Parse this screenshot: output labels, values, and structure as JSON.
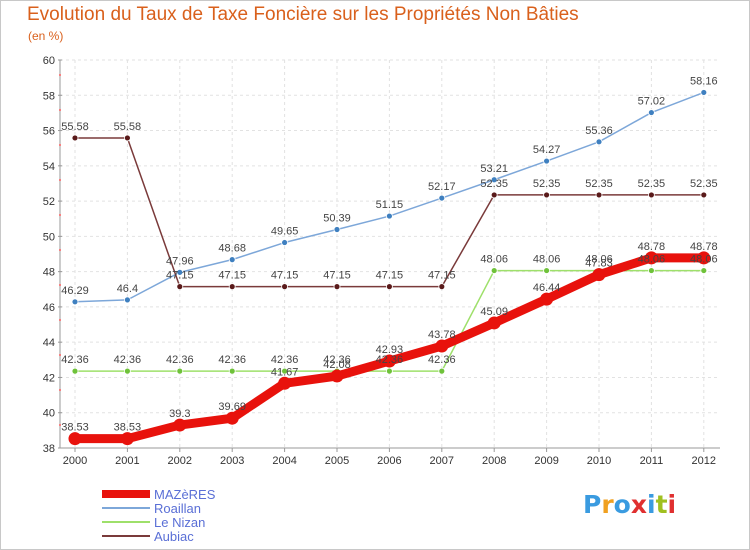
{
  "header": {
    "title": "Evolution du Taux de Taxe Foncière sur les Propriétés Non Bâties",
    "subtitle": "(en %)"
  },
  "logo": {
    "text": "Proxiti",
    "letters": [
      "P",
      "r",
      "o",
      "x",
      "i",
      "t",
      "i"
    ],
    "letter_colors": [
      "#3a9be0",
      "#f0a020",
      "#3a9be0",
      "#e03030",
      "#3a9be0",
      "#a0c020",
      "#e03030"
    ]
  },
  "chart_data": {
    "type": "line",
    "title": "Evolution du Taux de Taxe Foncière sur les Propriétés Non Bâties",
    "subtitle": "(en %)",
    "xlabel": "",
    "ylabel": "",
    "x": [
      2000,
      2001,
      2002,
      2003,
      2004,
      2005,
      2006,
      2007,
      2008,
      2009,
      2010,
      2011,
      2012
    ],
    "ylim": [
      38,
      60
    ],
    "yticks": [
      38,
      40,
      42,
      44,
      46,
      48,
      50,
      52,
      54,
      56,
      58,
      60
    ],
    "grid": true,
    "legend_position": "bottom-left",
    "series": [
      {
        "name": "MAZèRES",
        "color": "#e8120c",
        "point_color": "#e8120c",
        "emphasis": true,
        "values": [
          38.53,
          38.53,
          39.3,
          39.69,
          41.67,
          42.08,
          42.93,
          43.78,
          45.09,
          46.44,
          47.83,
          48.78,
          48.78
        ],
        "labels": [
          "38.53",
          "38.53",
          "39.3",
          "39.69",
          "41.67",
          "42.08",
          "42.93",
          "43.78",
          "45.09",
          "46.44",
          "47.83",
          "48.78",
          "48.78"
        ]
      },
      {
        "name": "Roaillan",
        "color": "#7da7d9",
        "point_color": "#3f80c0",
        "emphasis": false,
        "values": [
          46.29,
          46.4,
          47.96,
          48.68,
          49.65,
          50.39,
          51.15,
          52.17,
          53.21,
          54.27,
          55.36,
          57.02,
          58.16
        ],
        "labels": [
          "46.29",
          "46.4",
          "47.96",
          "48.68",
          "49.65",
          "50.39",
          "51.15",
          "52.17",
          "53.21",
          "54.27",
          "55.36",
          "57.02",
          "58.16"
        ]
      },
      {
        "name": "Le Nizan",
        "color": "#9ee06a",
        "point_color": "#6fc23a",
        "emphasis": false,
        "values": [
          42.36,
          42.36,
          42.36,
          42.36,
          42.36,
          42.36,
          42.36,
          42.36,
          48.06,
          48.06,
          48.06,
          48.06,
          48.06
        ],
        "labels": [
          "42.36",
          "42.36",
          "42.36",
          "42.36",
          "42.36",
          "42.36",
          "42.36",
          "42.36",
          "48.06",
          "48.06",
          "48.06",
          "48.06",
          "48.06"
        ]
      },
      {
        "name": "Aubiac",
        "color": "#7a3a3a",
        "point_color": "#5a1a1a",
        "emphasis": false,
        "values": [
          55.58,
          55.58,
          47.15,
          47.15,
          47.15,
          47.15,
          47.15,
          47.15,
          52.35,
          52.35,
          52.35,
          52.35,
          52.35
        ],
        "labels": [
          "55.58",
          "55.58",
          "47.15",
          "47.15",
          "47.15",
          "47.15",
          "47.15",
          "47.15",
          "52.35",
          "52.35",
          "52.35",
          "52.35",
          "52.35"
        ]
      }
    ]
  }
}
